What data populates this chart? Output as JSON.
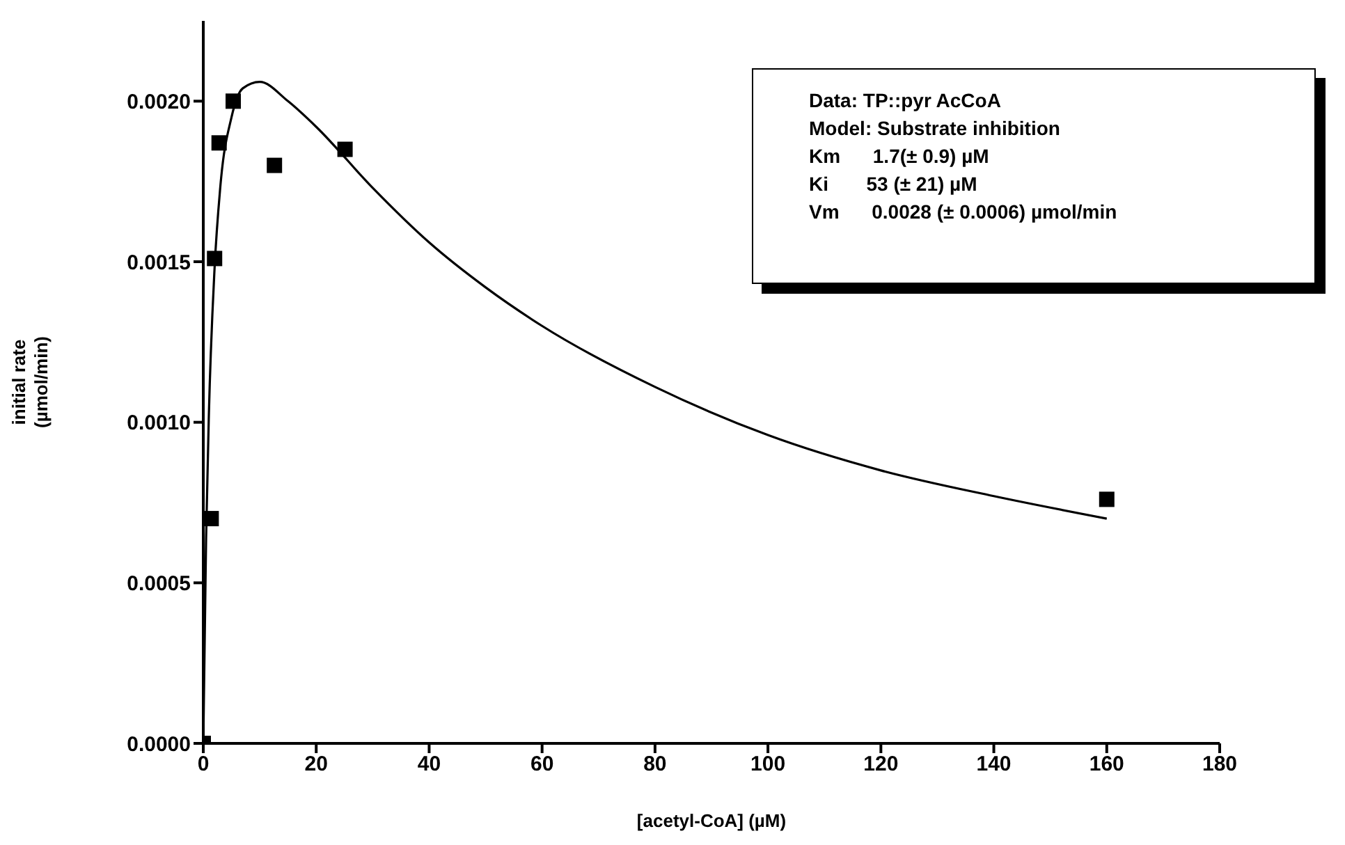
{
  "chart_data": {
    "type": "scatter",
    "xlabel": "[acetyl-CoA] (µM)",
    "ylabel": "initial rate\n(µmol/min)",
    "xlim": [
      0,
      180
    ],
    "xticks": [
      0,
      20,
      40,
      60,
      80,
      100,
      120,
      140,
      160,
      180
    ],
    "ylim": [
      0,
      0.00225
    ],
    "yticks": [
      {
        "value": 0,
        "label": "0.0000"
      },
      {
        "value": 0.0005,
        "label": "0.0005"
      },
      {
        "value": 0.001,
        "label": "0.0010"
      },
      {
        "value": 0.0015,
        "label": "0.0015"
      },
      {
        "value": 0.002,
        "label": "0.0020"
      }
    ],
    "series": [
      {
        "color": "#000000",
        "marker": "square",
        "x": [
          0,
          1.4,
          2.0,
          2.8,
          5.3,
          12.6,
          25.1,
          160
        ],
        "values": [
          0,
          0.0007,
          0.00151,
          0.00187,
          0.002,
          0.0018,
          0.00185,
          0.00076
        ]
      },
      {
        "type": "line",
        "color": "#000000",
        "marker": "none",
        "line_style": "solid",
        "x": [
          0,
          0.5,
          1,
          2,
          3,
          5,
          7,
          10,
          15,
          20,
          30,
          40,
          50,
          60,
          80,
          100,
          120,
          140,
          160
        ],
        "values": [
          0,
          0.00064,
          0.00103,
          0.00148,
          0.00173,
          0.00195,
          0.00204,
          0.00206,
          0.002,
          0.00192,
          0.00173,
          0.00156,
          0.00142,
          0.0013,
          0.00111,
          0.00096,
          0.00085,
          0.00077,
          0.0007
        ]
      }
    ],
    "annotations": [
      "Data: TP::pyr AcCoA",
      "Model: Substrate inhibition",
      "Km      1.7(± 0.9) µM",
      "Ki       53 (± 21) µM",
      "Vm      0.0028 (± 0.0006) µmol/min"
    ]
  }
}
